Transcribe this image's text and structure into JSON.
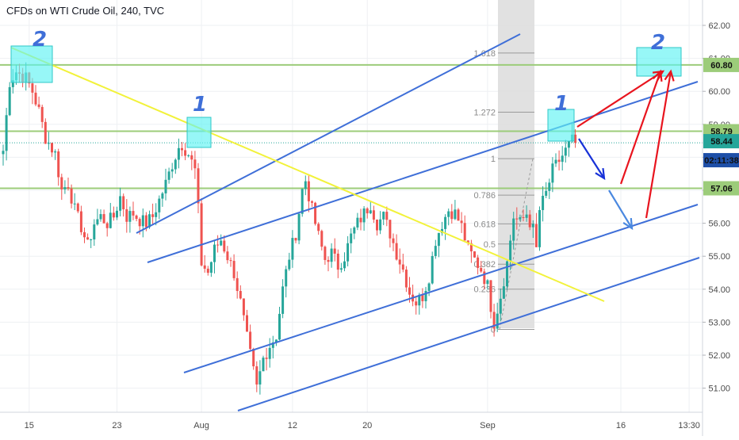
{
  "header": {
    "title": "CFDs on WTI Crude Oil, 240, TVC"
  },
  "colors": {
    "up": "#26a69a",
    "down": "#ef5350",
    "channel": "#3f6fd8",
    "trendline": "#f2f23a",
    "hline": "#9ccc7a",
    "target_box": "#5ff2f2",
    "red_arrow": "#e8141e",
    "blue_arrow_dark": "#1832d8",
    "blue_arrow_light": "#4a88e0",
    "countdown_bg": "#1e4fa8"
  },
  "chart_data": {
    "type": "candlestick",
    "title": "CFDs on WTI Crude Oil, 240, TVC",
    "xlabel": "",
    "ylabel": "",
    "ylim": [
      50.2,
      62.8
    ],
    "y_ticks": [
      51.0,
      52.0,
      53.0,
      54.0,
      55.0,
      56.0,
      57.0,
      58.0,
      59.0,
      60.0,
      61.0,
      62.0
    ],
    "x_ticks": [
      {
        "label": "15",
        "bar": 8
      },
      {
        "label": "23",
        "bar": 35
      },
      {
        "label": "Aug",
        "bar": 61
      },
      {
        "label": "12",
        "bar": 89
      },
      {
        "label": "20",
        "bar": 112
      },
      {
        "label": "Sep",
        "bar": 149
      },
      {
        "label": "16",
        "bar": 190
      },
      {
        "label": "13:30",
        "bar": 211
      }
    ],
    "x_ticks_display": [
      "15",
      "23",
      "Aug",
      "12",
      "20",
      "Sep",
      "16",
      "13:30"
    ],
    "current_price": "58.44",
    "countdown": "02:11:38",
    "price_labels": [
      "60.80",
      "58.79",
      "57.06"
    ],
    "horizontal_levels": [
      60.8,
      58.79,
      57.06
    ],
    "close_anchors": [
      [
        0,
        58.2
      ],
      [
        2,
        60.3
      ],
      [
        4,
        60.6
      ],
      [
        7,
        60.4
      ],
      [
        9,
        60.0
      ],
      [
        11,
        59.4
      ],
      [
        13,
        58.6
      ],
      [
        16,
        58.1
      ],
      [
        18,
        57.0
      ],
      [
        20,
        57.2
      ],
      [
        22,
        56.4
      ],
      [
        24,
        55.9
      ],
      [
        26,
        55.3
      ],
      [
        28,
        56.0
      ],
      [
        30,
        56.2
      ],
      [
        32,
        56.0
      ],
      [
        34,
        56.2
      ],
      [
        36,
        56.8
      ],
      [
        38,
        56.2
      ],
      [
        40,
        56.3
      ],
      [
        42,
        56.1
      ],
      [
        44,
        56.0
      ],
      [
        46,
        56.2
      ],
      [
        48,
        56.7
      ],
      [
        50,
        57.2
      ],
      [
        52,
        57.8
      ],
      [
        54,
        58.3
      ],
      [
        55,
        58.4
      ],
      [
        57,
        58.1
      ],
      [
        59,
        57.6
      ],
      [
        60,
        56.4
      ],
      [
        61,
        54.8
      ],
      [
        63,
        54.5
      ],
      [
        65,
        55.2
      ],
      [
        67,
        55.5
      ],
      [
        69,
        55.0
      ],
      [
        71,
        54.5
      ],
      [
        73,
        53.6
      ],
      [
        75,
        52.5
      ],
      [
        77,
        51.5
      ],
      [
        78,
        51.0
      ],
      [
        80,
        51.9
      ],
      [
        82,
        52.3
      ],
      [
        84,
        52.6
      ],
      [
        86,
        54.0
      ],
      [
        88,
        55.0
      ],
      [
        90,
        55.7
      ],
      [
        92,
        57.0
      ],
      [
        93,
        57.3
      ],
      [
        95,
        56.4
      ],
      [
        97,
        55.6
      ],
      [
        99,
        54.9
      ],
      [
        101,
        55.1
      ],
      [
        103,
        54.7
      ],
      [
        105,
        55.0
      ],
      [
        107,
        55.6
      ],
      [
        109,
        56.0
      ],
      [
        111,
        56.3
      ],
      [
        113,
        56.6
      ],
      [
        115,
        56.0
      ],
      [
        117,
        56.2
      ],
      [
        119,
        55.7
      ],
      [
        121,
        55.1
      ],
      [
        123,
        54.6
      ],
      [
        125,
        53.9
      ],
      [
        127,
        53.6
      ],
      [
        129,
        53.8
      ],
      [
        131,
        54.4
      ],
      [
        133,
        55.5
      ],
      [
        135,
        56.0
      ],
      [
        137,
        56.4
      ],
      [
        139,
        56.3
      ],
      [
        141,
        55.9
      ],
      [
        143,
        55.2
      ],
      [
        145,
        54.9
      ],
      [
        147,
        54.6
      ],
      [
        149,
        54.1
      ],
      [
        150,
        53.5
      ],
      [
        151,
        53.0
      ],
      [
        153,
        53.8
      ],
      [
        155,
        54.8
      ],
      [
        157,
        56.2
      ],
      [
        159,
        56.0
      ],
      [
        161,
        56.3
      ],
      [
        163,
        55.8
      ],
      [
        164,
        55.2
      ],
      [
        165,
        56.4
      ],
      [
        167,
        56.9
      ],
      [
        169,
        57.6
      ],
      [
        171,
        57.9
      ],
      [
        173,
        58.2
      ],
      [
        175,
        58.5
      ],
      [
        176,
        58.44
      ]
    ]
  }
}
